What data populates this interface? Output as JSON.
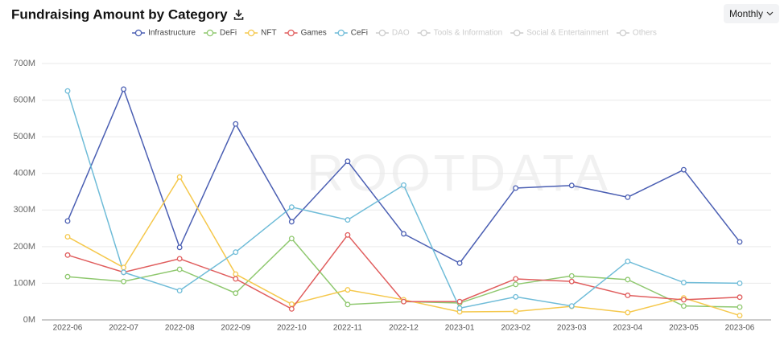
{
  "chart_data": {
    "type": "line",
    "title": "Fundraising Amount by Category",
    "dropdown": "Monthly",
    "watermark": "ROOTDATA",
    "categories": [
      "2022-06",
      "2022-07",
      "2022-08",
      "2022-09",
      "2022-10",
      "2022-11",
      "2022-12",
      "2023-01",
      "2023-02",
      "2023-03",
      "2023-04",
      "2023-05",
      "2023-06"
    ],
    "series": [
      {
        "name": "Infrastructure",
        "color": "#4b5fb3",
        "values": [
          270,
          630,
          198,
          535,
          268,
          433,
          235,
          155,
          360,
          367,
          335,
          410,
          213
        ]
      },
      {
        "name": "DeFi",
        "color": "#8fc86f",
        "values": [
          118,
          105,
          138,
          73,
          222,
          42,
          50,
          46,
          97,
          120,
          110,
          38,
          35
        ]
      },
      {
        "name": "NFT",
        "color": "#f5c84c",
        "values": [
          227,
          143,
          390,
          125,
          43,
          82,
          55,
          22,
          23,
          37,
          20,
          60,
          12
        ]
      },
      {
        "name": "Games",
        "color": "#e05d5d",
        "values": [
          177,
          130,
          167,
          112,
          30,
          232,
          50,
          50,
          112,
          105,
          67,
          55,
          62
        ]
      },
      {
        "name": "CeFi",
        "color": "#6fbcd8",
        "values": [
          625,
          130,
          80,
          185,
          308,
          273,
          368,
          32,
          63,
          38,
          160,
          102,
          100
        ]
      }
    ],
    "hidden_series": [
      "DAO",
      "Tools & Information",
      "Social & Entertainment",
      "Others"
    ],
    "hidden_color": "#cccccc",
    "ylim": [
      0,
      700
    ],
    "yticks": [
      {
        "value": 0,
        "label": "0M"
      },
      {
        "value": 100,
        "label": "100M"
      },
      {
        "value": 200,
        "label": "200M"
      },
      {
        "value": 300,
        "label": "300M"
      },
      {
        "value": 400,
        "label": "400M"
      },
      {
        "value": 500,
        "label": "500M"
      },
      {
        "value": 600,
        "label": "600M"
      },
      {
        "value": 700,
        "label": "700M"
      }
    ],
    "grid": true
  }
}
